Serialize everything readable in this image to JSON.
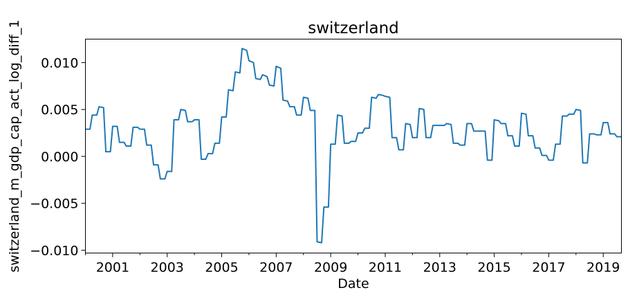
{
  "chart_data": {
    "type": "line",
    "title": "switzerland",
    "xlabel": "Date",
    "ylabel": "switzerland_m_gdp_cap_act_log_diff_1",
    "x_tick_labels": [
      "2001",
      "2003",
      "2005",
      "2007",
      "2009",
      "2011",
      "2013",
      "2015",
      "2017",
      "2019"
    ],
    "y_tick_labels": [
      "−0.010",
      "−0.005",
      "0.000",
      "0.005",
      "0.010"
    ],
    "y_ticks": [
      -0.01,
      -0.005,
      0.0,
      0.005,
      0.01
    ],
    "xlim": [
      "2000-01",
      "2019-09"
    ],
    "ylim": [
      -0.0103,
      0.0125
    ],
    "grid": false,
    "legend": "none",
    "line_color": "#1f77b4",
    "series": [
      {
        "x": [
          "2000-01",
          "2000-03",
          "2000-04",
          "2000-06",
          "2000-07",
          "2000-09",
          "2000-10",
          "2000-12",
          "2001-01",
          "2001-03",
          "2001-04",
          "2001-06",
          "2001-07",
          "2001-09",
          "2001-10",
          "2001-12",
          "2002-01",
          "2002-03",
          "2002-04",
          "2002-06",
          "2002-07",
          "2002-09",
          "2002-10",
          "2002-12",
          "2003-01",
          "2003-03",
          "2003-04",
          "2003-06",
          "2003-07",
          "2003-09",
          "2003-10",
          "2003-12",
          "2004-01",
          "2004-03",
          "2004-04",
          "2004-06",
          "2004-07",
          "2004-09",
          "2004-10",
          "2004-12",
          "2005-01",
          "2005-03",
          "2005-04",
          "2005-06",
          "2005-07",
          "2005-09",
          "2005-10",
          "2005-12",
          "2006-01",
          "2006-03",
          "2006-04",
          "2006-06",
          "2006-07",
          "2006-09",
          "2006-10",
          "2006-12",
          "2007-01",
          "2007-03",
          "2007-04",
          "2007-06",
          "2007-07",
          "2007-09",
          "2007-10",
          "2007-12",
          "2008-01",
          "2008-03",
          "2008-04",
          "2008-06",
          "2008-07",
          "2008-09",
          "2008-10",
          "2008-12",
          "2009-01",
          "2009-03",
          "2009-04",
          "2009-06",
          "2009-07",
          "2009-09",
          "2009-10",
          "2009-12",
          "2010-01",
          "2010-03",
          "2010-04",
          "2010-06",
          "2010-07",
          "2010-09",
          "2010-10",
          "2010-12",
          "2011-01",
          "2011-03",
          "2011-04",
          "2011-06",
          "2011-07",
          "2011-09",
          "2011-10",
          "2011-12",
          "2012-01",
          "2012-03",
          "2012-04",
          "2012-06",
          "2012-07",
          "2012-09",
          "2012-10",
          "2012-12",
          "2013-01",
          "2013-03",
          "2013-04",
          "2013-06",
          "2013-07",
          "2013-09",
          "2013-10",
          "2013-12",
          "2014-01",
          "2014-03",
          "2014-04",
          "2014-06",
          "2014-07",
          "2014-09",
          "2014-10",
          "2014-12",
          "2015-01",
          "2015-03",
          "2015-04",
          "2015-06",
          "2015-07",
          "2015-09",
          "2015-10",
          "2015-12",
          "2016-01",
          "2016-03",
          "2016-04",
          "2016-06",
          "2016-07",
          "2016-09",
          "2016-10",
          "2016-12",
          "2017-01",
          "2017-03",
          "2017-04",
          "2017-06",
          "2017-07",
          "2017-09",
          "2017-10",
          "2017-12",
          "2018-01",
          "2018-03",
          "2018-04",
          "2018-06",
          "2018-07",
          "2018-09",
          "2018-10",
          "2018-12",
          "2019-01",
          "2019-03",
          "2019-04",
          "2019-06",
          "2019-07",
          "2019-09"
        ],
        "y": [
          0.0029,
          0.0029,
          0.0044,
          0.0044,
          0.0053,
          0.0052,
          0.0005,
          0.0005,
          0.0032,
          0.0032,
          0.0015,
          0.0015,
          0.0011,
          0.0011,
          0.0031,
          0.0031,
          0.0029,
          0.0029,
          0.0012,
          0.0012,
          -0.0009,
          -0.0009,
          -0.0024,
          -0.0024,
          -0.0016,
          -0.0016,
          0.0039,
          0.0039,
          0.005,
          0.0049,
          0.0037,
          0.0037,
          0.0039,
          0.0039,
          -0.0003,
          -0.0003,
          0.0003,
          0.0003,
          0.0014,
          0.0014,
          0.0042,
          0.0042,
          0.0071,
          0.007,
          0.009,
          0.0089,
          0.0115,
          0.0113,
          0.0102,
          0.01,
          0.0083,
          0.0082,
          0.0087,
          0.0085,
          0.0076,
          0.0075,
          0.0096,
          0.0094,
          0.006,
          0.0059,
          0.0053,
          0.0053,
          0.0044,
          0.0044,
          0.0063,
          0.0062,
          0.0049,
          0.0049,
          -0.0091,
          -0.0092,
          -0.0054,
          -0.0054,
          0.0013,
          0.0013,
          0.0044,
          0.0043,
          0.0014,
          0.0014,
          0.0016,
          0.0016,
          0.0025,
          0.0025,
          0.003,
          0.003,
          0.0063,
          0.0062,
          0.0066,
          0.0065,
          0.0064,
          0.0063,
          0.002,
          0.002,
          0.0007,
          0.0007,
          0.0035,
          0.0034,
          0.002,
          0.002,
          0.0051,
          0.005,
          0.002,
          0.002,
          0.0033,
          0.0033,
          0.0033,
          0.0033,
          0.0035,
          0.0034,
          0.0014,
          0.0014,
          0.0012,
          0.0012,
          0.0035,
          0.0035,
          0.0027,
          0.0027,
          0.0027,
          0.0027,
          -0.0004,
          -0.0004,
          0.0039,
          0.0038,
          0.0035,
          0.0035,
          0.0022,
          0.0022,
          0.0011,
          0.0011,
          0.0046,
          0.0045,
          0.0022,
          0.0022,
          0.0009,
          0.0009,
          0.0001,
          0.0001,
          -0.0004,
          -0.0004,
          0.0013,
          0.0013,
          0.0043,
          0.0043,
          0.0045,
          0.0045,
          0.005,
          0.0049,
          -0.0007,
          -0.0007,
          0.0024,
          0.0024,
          0.0023,
          0.0023,
          0.0036,
          0.0036,
          0.0024,
          0.0024,
          0.0021,
          0.0021
        ]
      }
    ]
  }
}
